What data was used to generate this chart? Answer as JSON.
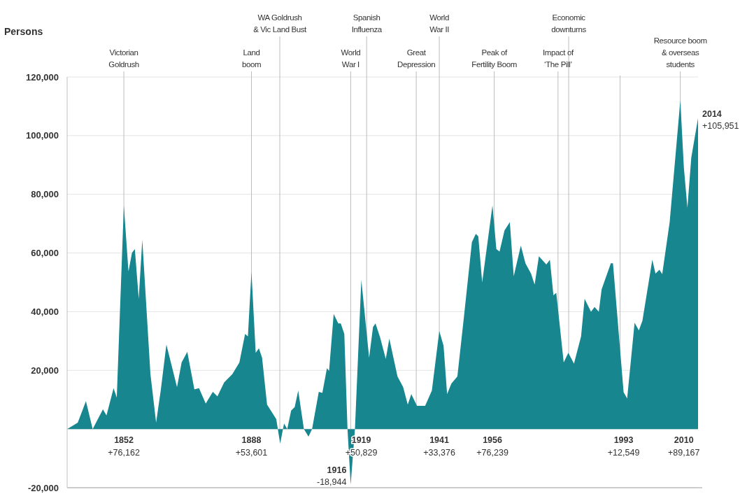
{
  "chart_data": {
    "type": "area",
    "ylabel": "Persons",
    "x": [
      1836,
      1839,
      1841.3,
      1843.2,
      1846.1,
      1847.1,
      1849.1,
      1850,
      1852,
      1853.3,
      1854.3,
      1855.1,
      1856.2,
      1857.2,
      1859.5,
      1861.1,
      1862.4,
      1864,
      1867,
      1868.3,
      1869.9,
      1871.9,
      1873.2,
      1875.1,
      1877.1,
      1878.4,
      1880.3,
      1882.6,
      1884.6,
      1886.2,
      1887,
      1888,
      1889.2,
      1890.1,
      1891,
      1892.4,
      1895,
      1896.1,
      1897.2,
      1898.1,
      1899.2,
      1900.2,
      1901.2,
      1902.8,
      1904.1,
      1905.1,
      1907,
      1908,
      1909.3,
      1909.9,
      1911.2,
      1912.5,
      1913.2,
      1914.2,
      1915.1,
      1916,
      1917.2,
      1919,
      1921.2,
      1922.3,
      1923,
      1924.3,
      1925.9,
      1926.9,
      1929.2,
      1930.8,
      1932.1,
      1933.1,
      1934.7,
      1937,
      1938.9,
      1941,
      1942.2,
      1943.2,
      1944.4,
      1946.1,
      1948,
      1950.2,
      1951.3,
      1952,
      1953.1,
      1956,
      1957.1,
      1958,
      1959.4,
      1960.9,
      1962,
      1964,
      1965.3,
      1966.9,
      1967.9,
      1969.1,
      1971.2,
      1972.2,
      1973.2,
      1974,
      1976.1,
      1977.4,
      1979,
      1981,
      1982,
      1983.8,
      1984.8,
      1986,
      1986.8,
      1989.4,
      1990,
      1993,
      1994,
      1996.1,
      1997.3,
      1998.3,
      2001.1,
      2002,
      2003.1,
      2003.9,
      2006,
      2009,
      2010,
      2011,
      2012.1,
      2014
    ],
    "series": [
      {
        "color": "#17868f",
        "values": [
          0,
          2200,
          9500,
          0,
          6700,
          4600,
          13900,
          10700,
          76162,
          53700,
          60100,
          61300,
          44400,
          64500,
          18700,
          2200,
          13100,
          28800,
          14300,
          22700,
          26300,
          13500,
          13900,
          8700,
          12700,
          11100,
          15900,
          18700,
          22700,
          32400,
          31600,
          53601,
          26000,
          27500,
          24300,
          8300,
          3400,
          -5000,
          1900,
          0,
          6300,
          7500,
          13100,
          0,
          -2600,
          0,
          12700,
          12300,
          20700,
          19800,
          39200,
          36000,
          36000,
          32400,
          0,
          -18944,
          0,
          50829,
          24300,
          34800,
          36000,
          31200,
          23900,
          30800,
          17900,
          14300,
          8300,
          11900,
          7900,
          7900,
          13100,
          33376,
          28400,
          11900,
          15500,
          17900,
          38800,
          63700,
          66500,
          65700,
          50000,
          76239,
          61300,
          60500,
          67700,
          70500,
          52100,
          62500,
          56500,
          52900,
          49200,
          58900,
          56100,
          57700,
          45600,
          46400,
          22700,
          26000,
          22300,
          31600,
          44400,
          40000,
          41600,
          40000,
          47600,
          56500,
          56500,
          12549,
          10400,
          36200,
          33600,
          36900,
          57700,
          53000,
          54300,
          52800,
          70600,
          112000,
          89167,
          75400,
          92600,
          105951
        ]
      }
    ],
    "xlim": [
      1836,
      2014
    ],
    "ylim": [
      -20000,
      120000
    ],
    "yticks": [
      {
        "value": -20000,
        "label": "-20,000"
      },
      {
        "value": 0,
        "label": null
      },
      {
        "value": 20000,
        "label": "20,000"
      },
      {
        "value": 40000,
        "label": "40,000"
      },
      {
        "value": 60000,
        "label": "60,000"
      },
      {
        "value": 80000,
        "label": "80,000"
      },
      {
        "value": 100000,
        "label": "100,000"
      },
      {
        "value": 120000,
        "label": "120,000"
      }
    ],
    "xticks": [
      1852,
      1888,
      1919,
      1941,
      1956,
      1993,
      2010
    ],
    "grid": "y",
    "ref_lines": [
      {
        "axis": "x",
        "value": 1852,
        "label": "Victorian\nGoldrush"
      },
      {
        "axis": "x",
        "value": 1888,
        "label": "Land\nboom"
      },
      {
        "axis": "x",
        "value": 1896,
        "label": "WA Goldrush\n& Vic Land Bust"
      },
      {
        "axis": "x",
        "value": 1916,
        "label": "World\nWar I"
      },
      {
        "axis": "x",
        "value": 1920.5,
        "label": "Spanish\nInfluenza"
      },
      {
        "axis": "x",
        "value": 1934.5,
        "label": "Great\nDepression"
      },
      {
        "axis": "x",
        "value": 1941,
        "label": "World\nWar II"
      },
      {
        "axis": "x",
        "value": 1956.5,
        "label": "Peak of\nFertility Boom"
      },
      {
        "axis": "x",
        "value": 1974.5,
        "label": "Impact of\n‘The Pill’"
      },
      {
        "axis": "x",
        "value": 1977.5,
        "label": "Economic\ndownturns"
      },
      {
        "axis": "x",
        "value": 1992,
        "label": null
      },
      {
        "axis": "x",
        "value": 2009,
        "label": "Resource boom\n& overseas\nstudents"
      }
    ],
    "annotations": [
      "+76,162",
      "+53,601",
      "+50,829",
      "+33,376",
      "+76,239",
      "+12,549",
      "+89,167",
      {
        "text": "1916\n-18,944",
        "x": 1916,
        "y": -18944
      },
      {
        "text": "2014\n+105,951",
        "x": 2014,
        "y": 105951
      }
    ]
  }
}
